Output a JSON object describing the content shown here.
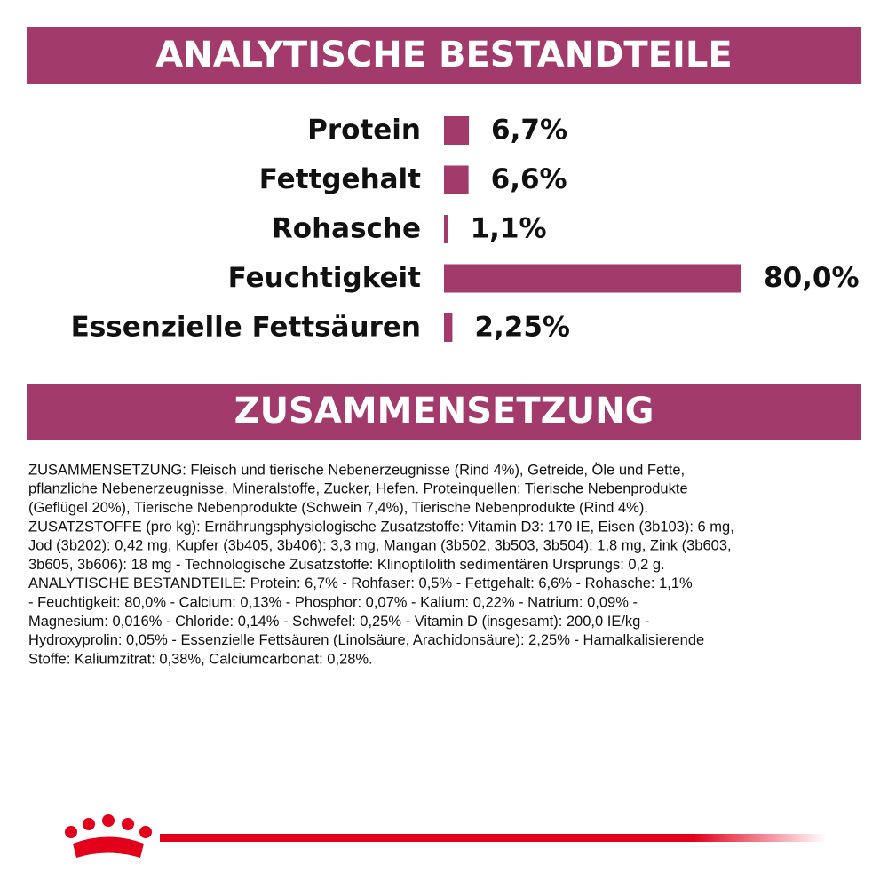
{
  "header_1": "ANALYTISCHE BESTANDTEILE",
  "chart_data": {
    "type": "bar",
    "orientation": "horizontal",
    "categories": [
      "Protein",
      "Fettgehalt",
      "Rohasche",
      "Feuchtigkeit",
      "Essenzielle Fettsäuren"
    ],
    "values": [
      6.7,
      6.6,
      1.1,
      80.0,
      2.25
    ],
    "value_labels": [
      "6,7%",
      "6,6%",
      "1,1%",
      "80,0%",
      "2,25%"
    ],
    "color": "#a23a6b"
  },
  "header_2": "ZUSAMMENSETZUNG",
  "paragraph_lines": [
    "ZUSAMMENSETZUNG: Fleisch und tierische Nebenerzeugnisse (Rind 4%), Getreide, Öle und Fette,",
    "pflanzliche Nebenerzeugnisse, Mineralstoffe, Zucker, Hefen. Proteinquellen: Tierische Nebenprodukte",
    "(Geflügel 20%), Tierische Nebenprodukte (Schwein 7,4%), Tierische Nebenprodukte (Rind 4%).",
    "ZUSATZSTOFFE (pro kg): Ernährungsphysiologische Zusatzstoffe: Vitamin D3: 170 IE, Eisen (3b103): 6 mg,",
    "Jod (3b202): 0,42 mg, Kupfer (3b405, 3b406): 3,3 mg, Mangan (3b502, 3b503, 3b504): 1,8 mg, Zink (3b603,",
    "3b605, 3b606): 18 mg - Technologische Zusatzstoffe: Klinoptilolith sedimentären Ursprungs: 0,2 g.",
    "ANALYTISCHE BESTANDTEILE: Protein: 6,7% - Rohfaser: 0,5% - Fettgehalt: 6,6% - Rohasche: 1,1%",
    "- Feuchtigkeit: 80,0% - Calcium: 0,13% - Phosphor: 0,07% - Kalium: 0,22% - Natrium: 0,09% -",
    "Magnesium: 0,016% - Chloride: 0,14% - Schwefel: 0,25% - Vitamin D (insgesamt): 200,0 IE/kg -",
    "Hydroxyprolin: 0,05% - Essenzielle Fettsäuren (Linolsäure, Arachidonsäure): 2,25% - Harnalkalisierende",
    "Stoffe: Kaliumzitrat: 0,38%, Calciumcarbonat: 0,28%."
  ]
}
